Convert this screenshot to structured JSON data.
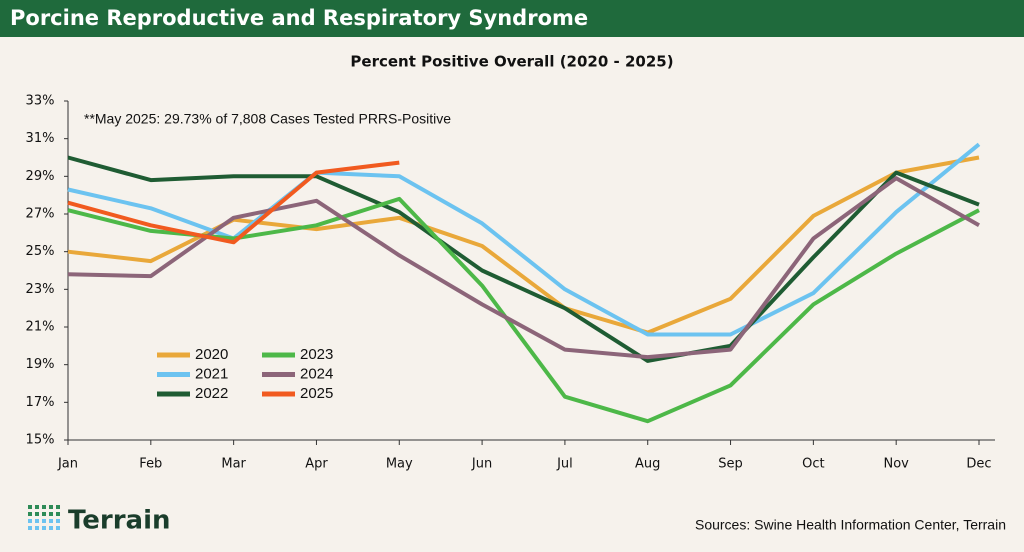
{
  "header": {
    "title": "Porcine Reproductive and Respiratory Syndrome"
  },
  "chart_data": {
    "type": "line",
    "title": "Percent Positive Overall (2020 - 2025)",
    "annotation": "**May 2025: 29.73% of 7,808 Cases Tested PRRS-Positive",
    "categories": [
      "Jan",
      "Feb",
      "Mar",
      "Apr",
      "May",
      "Jun",
      "Jul",
      "Aug",
      "Sep",
      "Oct",
      "Nov",
      "Dec"
    ],
    "series": [
      {
        "name": "2020",
        "color": "#e9a83a",
        "values": [
          25.0,
          24.5,
          26.7,
          26.2,
          26.8,
          25.3,
          22.0,
          20.7,
          22.5,
          26.9,
          29.2,
          30.0
        ]
      },
      {
        "name": "2021",
        "color": "#6cc3f0",
        "values": [
          28.3,
          27.3,
          25.7,
          29.2,
          29.0,
          26.5,
          23.0,
          20.6,
          20.6,
          22.8,
          27.1,
          30.7
        ]
      },
      {
        "name": "2022",
        "color": "#1f5c33",
        "values": [
          30.0,
          28.8,
          29.0,
          29.0,
          27.1,
          24.0,
          22.0,
          19.2,
          20.0,
          24.7,
          29.2,
          27.5
        ]
      },
      {
        "name": "2023",
        "color": "#4db848",
        "values": [
          27.2,
          26.1,
          25.7,
          26.4,
          27.8,
          23.2,
          17.3,
          16.0,
          17.9,
          22.2,
          24.9,
          27.2
        ]
      },
      {
        "name": "2024",
        "color": "#8c6579",
        "values": [
          23.8,
          23.7,
          26.8,
          27.7,
          24.8,
          22.2,
          19.8,
          19.4,
          19.8,
          25.7,
          28.9,
          26.4
        ]
      },
      {
        "name": "2025",
        "color": "#f15a1f",
        "values": [
          27.6,
          26.4,
          25.5,
          29.2,
          29.73,
          null,
          null,
          null,
          null,
          null,
          null,
          null
        ]
      }
    ],
    "ylim": [
      15,
      33
    ],
    "yticks": [
      {
        "value": 15,
        "label": "15%"
      },
      {
        "value": 17,
        "label": "17%"
      },
      {
        "value": 19,
        "label": "19%"
      },
      {
        "value": 21,
        "label": "21%"
      },
      {
        "value": 23,
        "label": "23%"
      },
      {
        "value": 25,
        "label": "25%"
      },
      {
        "value": 27,
        "label": "27%"
      },
      {
        "value": 29,
        "label": "29%"
      },
      {
        "value": 31,
        "label": "31%"
      },
      {
        "value": 33,
        "label": "33%"
      }
    ],
    "grid": false
  },
  "footer": {
    "logo": "Terrain",
    "source": "Sources: Swine Health Information Center, Terrain"
  }
}
